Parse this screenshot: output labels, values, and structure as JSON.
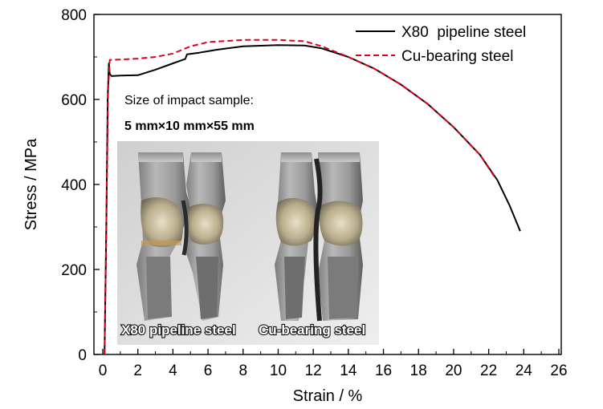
{
  "chart_data": {
    "type": "line",
    "title": "",
    "xlabel": "Strain / %",
    "ylabel": "Stress / MPa",
    "xlim": [
      0,
      26
    ],
    "ylim": [
      0,
      800
    ],
    "xticks": [
      0,
      2,
      4,
      6,
      8,
      10,
      12,
      14,
      16,
      18,
      20,
      22,
      24,
      26
    ],
    "yticks": [
      0,
      200,
      400,
      600,
      800
    ],
    "legend_position": "top-right",
    "series": [
      {
        "name": "X80  pipeline steel",
        "color": "#000000",
        "style": "solid",
        "points": [
          [
            0.1,
            0
          ],
          [
            0.2,
            300
          ],
          [
            0.28,
            600
          ],
          [
            0.35,
            685
          ],
          [
            0.4,
            660
          ],
          [
            0.5,
            655
          ],
          [
            1.0,
            656
          ],
          [
            2.0,
            657
          ],
          [
            3.0,
            670
          ],
          [
            4.0,
            685
          ],
          [
            4.7,
            695
          ],
          [
            4.8,
            706
          ],
          [
            5.5,
            710
          ],
          [
            6.5,
            717
          ],
          [
            8.0,
            725
          ],
          [
            10.0,
            728
          ],
          [
            11.5,
            727
          ],
          [
            12.5,
            720
          ],
          [
            14.0,
            700
          ],
          [
            15.5,
            672
          ],
          [
            17.0,
            635
          ],
          [
            18.5,
            590
          ],
          [
            20.0,
            535
          ],
          [
            21.5,
            470
          ],
          [
            22.5,
            410
          ],
          [
            23.2,
            350
          ],
          [
            23.8,
            290
          ]
        ]
      },
      {
        "name": "Cu-bearing steel",
        "color": "#e0001b",
        "style": "dashed",
        "points": [
          [
            0.1,
            0
          ],
          [
            0.2,
            300
          ],
          [
            0.3,
            620
          ],
          [
            0.4,
            693
          ],
          [
            1.0,
            694
          ],
          [
            2.0,
            696
          ],
          [
            3.0,
            700
          ],
          [
            4.0,
            708
          ],
          [
            5.0,
            725
          ],
          [
            6.0,
            735
          ],
          [
            8.0,
            740
          ],
          [
            10.0,
            740
          ],
          [
            11.5,
            737
          ],
          [
            12.5,
            725
          ],
          [
            14.0,
            700
          ],
          [
            15.5,
            672
          ],
          [
            17.0,
            635
          ],
          [
            18.5,
            590
          ],
          [
            20.0,
            535
          ],
          [
            21.5,
            470
          ],
          [
            22.3,
            420
          ]
        ]
      }
    ],
    "annotations": [
      "Size of impact sample:",
      "5 mm×10 mm×55 mm"
    ]
  },
  "inset_photo": {
    "label_left": "X80 pipeline steel",
    "label_right": "Cu-bearing steel"
  },
  "colors": {
    "x80": "#000000",
    "cu": "#e0001b"
  }
}
